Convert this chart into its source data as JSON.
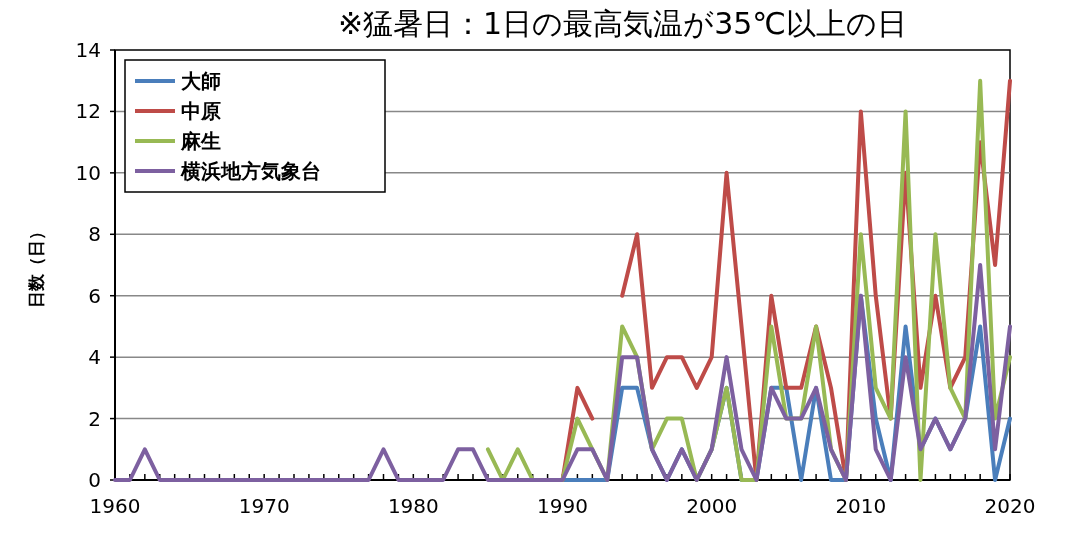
{
  "chart_data": {
    "type": "line",
    "title": "※猛暑日：1日の最高気温が35℃以上の日",
    "ylabel": "日数（日）",
    "x": [
      1960,
      1961,
      1962,
      1963,
      1964,
      1965,
      1966,
      1967,
      1968,
      1969,
      1970,
      1971,
      1972,
      1973,
      1974,
      1975,
      1976,
      1977,
      1978,
      1979,
      1980,
      1981,
      1982,
      1983,
      1984,
      1985,
      1986,
      1987,
      1988,
      1989,
      1990,
      1991,
      1992,
      1993,
      1994,
      1995,
      1996,
      1997,
      1998,
      1999,
      2000,
      2001,
      2002,
      2003,
      2004,
      2005,
      2006,
      2007,
      2008,
      2009,
      2010,
      2011,
      2012,
      2013,
      2014,
      2015,
      2016,
      2017,
      2018,
      2019,
      2020
    ],
    "xlim": [
      1960,
      2020
    ],
    "xticks": [
      1960,
      1970,
      1980,
      1990,
      2000,
      2010,
      2020
    ],
    "ylim": [
      0,
      14
    ],
    "yticks": [
      0,
      2,
      4,
      6,
      8,
      10,
      12,
      14
    ],
    "grid": "y",
    "legend": "top left",
    "series": [
      {
        "name": "大師",
        "color": "#4a7ebb",
        "values": [
          null,
          null,
          null,
          null,
          null,
          null,
          null,
          null,
          null,
          null,
          null,
          null,
          null,
          null,
          null,
          null,
          null,
          null,
          null,
          null,
          null,
          null,
          null,
          null,
          null,
          null,
          null,
          null,
          null,
          null,
          0,
          0,
          0,
          0,
          3,
          3,
          1,
          0,
          1,
          0,
          1,
          3,
          0,
          0,
          3,
          3,
          0,
          3,
          0,
          0,
          6,
          2,
          0,
          5,
          1,
          2,
          1,
          2,
          5,
          0,
          2
        ]
      },
      {
        "name": "中原",
        "color": "#be4b48",
        "values": [
          null,
          null,
          null,
          null,
          null,
          null,
          null,
          null,
          null,
          null,
          null,
          null,
          null,
          null,
          null,
          null,
          null,
          null,
          null,
          null,
          null,
          null,
          null,
          null,
          null,
          null,
          null,
          null,
          null,
          null,
          0,
          3,
          2,
          null,
          6,
          8,
          3,
          4,
          4,
          3,
          4,
          10,
          5,
          0,
          6,
          3,
          3,
          5,
          3,
          0,
          12,
          6,
          2,
          10,
          3,
          6,
          3,
          4,
          11,
          7,
          13
        ]
      },
      {
        "name": "麻生",
        "color": "#98b954",
        "values": [
          null,
          null,
          null,
          null,
          null,
          null,
          null,
          null,
          null,
          null,
          null,
          null,
          null,
          null,
          null,
          null,
          null,
          null,
          null,
          null,
          null,
          null,
          null,
          null,
          null,
          1,
          0,
          1,
          0,
          0,
          0,
          2,
          1,
          0,
          5,
          4,
          1,
          2,
          2,
          0,
          1,
          3,
          0,
          0,
          5,
          2,
          2,
          5,
          1,
          0,
          8,
          3,
          2,
          12,
          0,
          8,
          3,
          2,
          13,
          2,
          4
        ]
      },
      {
        "name": "横浜地方気象台",
        "color": "#7d60a0",
        "values": [
          0,
          0,
          1,
          0,
          0,
          0,
          0,
          0,
          0,
          0,
          0,
          0,
          0,
          0,
          0,
          0,
          0,
          0,
          1,
          0,
          0,
          0,
          0,
          1,
          1,
          0,
          0,
          0,
          0,
          0,
          0,
          1,
          1,
          0,
          4,
          4,
          1,
          0,
          1,
          0,
          1,
          4,
          1,
          0,
          3,
          2,
          2,
          3,
          1,
          0,
          6,
          1,
          0,
          4,
          1,
          2,
          1,
          2,
          7,
          1,
          5
        ]
      }
    ]
  }
}
